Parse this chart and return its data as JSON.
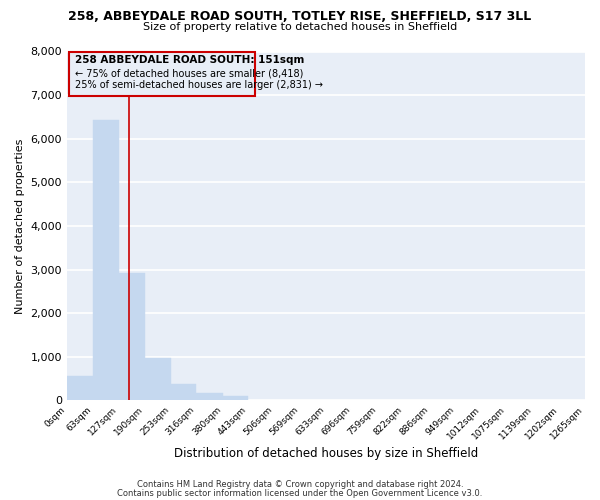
{
  "title_line1": "258, ABBEYDALE ROAD SOUTH, TOTLEY RISE, SHEFFIELD, S17 3LL",
  "title_line2": "Size of property relative to detached houses in Sheffield",
  "xlabel": "Distribution of detached houses by size in Sheffield",
  "ylabel": "Number of detached properties",
  "bar_edges": [
    0,
    63,
    127,
    190,
    253,
    316,
    380,
    443,
    506,
    569,
    633,
    696,
    759,
    822,
    886,
    949,
    1012,
    1075,
    1139,
    1202,
    1265
  ],
  "bar_heights": [
    560,
    6430,
    2930,
    975,
    380,
    175,
    95,
    0,
    0,
    0,
    0,
    0,
    0,
    0,
    0,
    0,
    0,
    0,
    0,
    0
  ],
  "bar_color": "#c5d8ef",
  "vline_color": "#cc0000",
  "vline_x": 151,
  "ylim": [
    0,
    8000
  ],
  "yticks": [
    0,
    1000,
    2000,
    3000,
    4000,
    5000,
    6000,
    7000,
    8000
  ],
  "annotation_title": "258 ABBEYDALE ROAD SOUTH: 151sqm",
  "annotation_line2": "← 75% of detached houses are smaller (8,418)",
  "annotation_line3": "25% of semi-detached houses are larger (2,831) →",
  "footer_line1": "Contains HM Land Registry data © Crown copyright and database right 2024.",
  "footer_line2": "Contains public sector information licensed under the Open Government Licence v3.0.",
  "background_color": "#ffffff",
  "plot_bg_color": "#e8eef7",
  "grid_color": "#ffffff"
}
